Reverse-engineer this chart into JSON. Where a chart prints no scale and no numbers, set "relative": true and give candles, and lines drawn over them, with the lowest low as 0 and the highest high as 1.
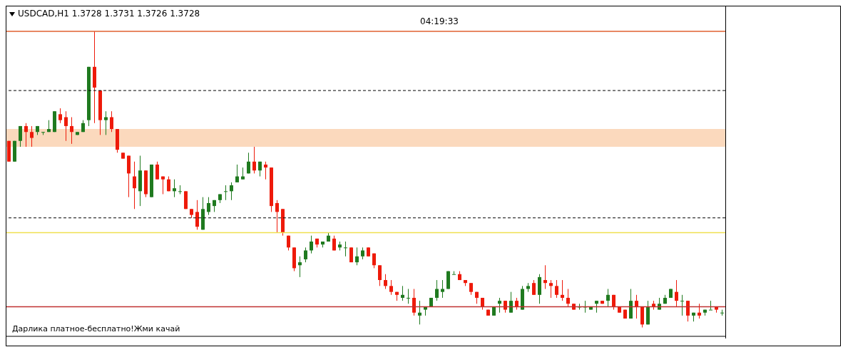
{
  "chart_data": {
    "type": "candlestick",
    "title": "USDCAD,H1  1.3728 1.3731 1.3726 1.3728",
    "relative": true,
    "grid": false,
    "legend": false,
    "categories": [
      null,
      null,
      null,
      null,
      null,
      null,
      null,
      null,
      null,
      null,
      null,
      null,
      null,
      null,
      null,
      null,
      null,
      null,
      null,
      null,
      null,
      null,
      null,
      null,
      null,
      null,
      null,
      null,
      null,
      null,
      null,
      null,
      null,
      null,
      null,
      null,
      null,
      null,
      null,
      null,
      null,
      null,
      null,
      null,
      null,
      null,
      null,
      null,
      null,
      null,
      null,
      null,
      null,
      null,
      null,
      null,
      null,
      null,
      null,
      null,
      null,
      null,
      null,
      null,
      null,
      null,
      null,
      null,
      null,
      null,
      null,
      null,
      null,
      null,
      null,
      null,
      null,
      null,
      null,
      null,
      null,
      null,
      null,
      null,
      null,
      null,
      null,
      null,
      null,
      null,
      null,
      null,
      null,
      null,
      null,
      null,
      null,
      null,
      null,
      null,
      null,
      null,
      null,
      null,
      null,
      null,
      null,
      null,
      null,
      null,
      null,
      null,
      null,
      null,
      null,
      null,
      null,
      null,
      null,
      null,
      null,
      null,
      null,
      null,
      null,
      null
    ],
    "ohlc": [
      [
        0.63,
        0.63,
        0.56,
        0.56
      ],
      [
        0.56,
        0.63,
        0.56,
        0.63
      ],
      [
        0.63,
        0.68,
        0.61,
        0.68
      ],
      [
        0.68,
        0.69,
        0.61,
        0.66
      ],
      [
        0.66,
        0.68,
        0.61,
        0.64
      ],
      [
        0.66,
        0.68,
        0.65,
        0.68
      ],
      [
        0.66,
        0.66,
        0.65,
        0.66
      ],
      [
        0.66,
        0.7,
        0.66,
        0.67
      ],
      [
        0.66,
        0.73,
        0.66,
        0.73
      ],
      [
        0.72,
        0.74,
        0.69,
        0.7
      ],
      [
        0.71,
        0.73,
        0.63,
        0.68
      ],
      [
        0.68,
        0.71,
        0.62,
        0.66
      ],
      [
        0.65,
        0.66,
        0.65,
        0.66
      ],
      [
        0.66,
        0.7,
        0.66,
        0.69
      ],
      [
        0.7,
        0.88,
        0.68,
        0.88
      ],
      [
        0.88,
        1.0,
        0.69,
        0.81
      ],
      [
        0.8,
        0.8,
        0.65,
        0.7
      ],
      [
        0.7,
        0.73,
        0.65,
        0.71
      ],
      [
        0.71,
        0.73,
        0.66,
        0.67
      ],
      [
        0.67,
        0.67,
        0.59,
        0.6
      ],
      [
        0.59,
        0.59,
        0.57,
        0.57
      ],
      [
        0.58,
        0.58,
        0.44,
        0.52
      ],
      [
        0.51,
        0.56,
        0.4,
        0.47
      ],
      [
        0.46,
        0.58,
        0.41,
        0.53
      ],
      [
        0.53,
        0.53,
        0.44,
        0.45
      ],
      [
        0.44,
        0.55,
        0.44,
        0.55
      ],
      [
        0.55,
        0.56,
        0.5,
        0.5
      ],
      [
        0.51,
        0.51,
        0.45,
        0.5
      ],
      [
        0.5,
        0.51,
        0.46,
        0.46
      ],
      [
        0.46,
        0.5,
        0.44,
        0.47
      ],
      [
        0.46,
        0.48,
        0.45,
        0.46
      ],
      [
        0.46,
        0.46,
        0.4,
        0.4
      ],
      [
        0.4,
        0.4,
        0.37,
        0.38
      ],
      [
        0.39,
        0.43,
        0.33,
        0.34
      ],
      [
        0.33,
        0.44,
        0.33,
        0.4
      ],
      [
        0.39,
        0.44,
        0.38,
        0.42
      ],
      [
        0.41,
        0.43,
        0.39,
        0.43
      ],
      [
        0.43,
        0.45,
        0.42,
        0.45
      ],
      [
        0.46,
        0.48,
        0.43,
        0.46
      ],
      [
        0.46,
        0.49,
        0.43,
        0.48
      ],
      [
        0.49,
        0.55,
        0.49,
        0.51
      ],
      [
        0.5,
        0.54,
        0.5,
        0.51
      ],
      [
        0.52,
        0.59,
        0.52,
        0.56
      ],
      [
        0.56,
        0.61,
        0.52,
        0.53
      ],
      [
        0.53,
        0.56,
        0.51,
        0.56
      ],
      [
        0.55,
        0.56,
        0.5,
        0.54
      ],
      [
        0.54,
        0.54,
        0.39,
        0.41
      ],
      [
        0.42,
        0.43,
        0.32,
        0.39
      ],
      [
        0.4,
        0.4,
        0.31,
        0.32
      ],
      [
        0.31,
        0.31,
        0.26,
        0.27
      ],
      [
        0.27,
        0.27,
        0.19,
        0.2
      ],
      [
        0.21,
        0.24,
        0.17,
        0.22
      ],
      [
        0.23,
        0.27,
        0.22,
        0.26
      ],
      [
        0.26,
        0.31,
        0.25,
        0.29
      ],
      [
        0.3,
        0.3,
        0.27,
        0.28
      ],
      [
        0.28,
        0.29,
        0.27,
        0.29
      ],
      [
        0.29,
        0.32,
        0.29,
        0.31
      ],
      [
        0.3,
        0.31,
        0.26,
        0.26
      ],
      [
        0.27,
        0.29,
        0.26,
        0.28
      ],
      [
        0.27,
        0.29,
        0.24,
        0.27
      ],
      [
        0.27,
        0.27,
        0.22,
        0.22
      ],
      [
        0.22,
        0.27,
        0.21,
        0.24
      ],
      [
        0.24,
        0.27,
        0.23,
        0.26
      ],
      [
        0.27,
        0.27,
        0.24,
        0.24
      ],
      [
        0.25,
        0.25,
        0.2,
        0.21
      ],
      [
        0.21,
        0.21,
        0.14,
        0.16
      ],
      [
        0.16,
        0.18,
        0.13,
        0.14
      ],
      [
        0.14,
        0.16,
        0.11,
        0.12
      ],
      [
        0.12,
        0.12,
        0.09,
        0.11
      ],
      [
        0.1,
        0.14,
        0.09,
        0.11
      ],
      [
        0.1,
        0.13,
        0.08,
        0.1
      ],
      [
        0.1,
        0.13,
        0.04,
        0.05
      ],
      [
        0.04,
        0.09,
        0.01,
        0.05
      ],
      [
        0.06,
        0.07,
        0.04,
        0.07
      ],
      [
        0.07,
        0.1,
        0.07,
        0.1
      ],
      [
        0.1,
        0.16,
        0.09,
        0.13
      ],
      [
        0.12,
        0.16,
        0.1,
        0.13
      ],
      [
        0.13,
        0.19,
        0.13,
        0.19
      ],
      [
        0.18,
        0.19,
        0.18,
        0.18
      ],
      [
        0.18,
        0.19,
        0.16,
        0.16
      ],
      [
        0.16,
        0.16,
        0.14,
        0.15
      ],
      [
        0.15,
        0.15,
        0.11,
        0.12
      ],
      [
        0.12,
        0.12,
        0.08,
        0.1
      ],
      [
        0.1,
        0.1,
        0.06,
        0.07
      ],
      [
        0.06,
        0.06,
        0.04,
        0.04
      ],
      [
        0.04,
        0.07,
        0.04,
        0.07
      ],
      [
        0.08,
        0.1,
        0.05,
        0.09
      ],
      [
        0.09,
        0.09,
        0.05,
        0.06
      ],
      [
        0.05,
        0.12,
        0.05,
        0.09
      ],
      [
        0.09,
        0.1,
        0.06,
        0.07
      ],
      [
        0.06,
        0.14,
        0.06,
        0.13
      ],
      [
        0.13,
        0.15,
        0.12,
        0.14
      ],
      [
        0.15,
        0.16,
        0.11,
        0.11
      ],
      [
        0.11,
        0.18,
        0.08,
        0.17
      ],
      [
        0.16,
        0.21,
        0.13,
        0.15
      ],
      [
        0.15,
        0.16,
        0.1,
        0.14
      ],
      [
        0.14,
        0.16,
        0.1,
        0.11
      ],
      [
        0.11,
        0.16,
        0.09,
        0.1
      ],
      [
        0.1,
        0.13,
        0.07,
        0.08
      ],
      [
        0.08,
        0.08,
        0.06,
        0.06
      ],
      [
        0.07,
        0.08,
        0.06,
        0.07
      ],
      [
        0.07,
        0.09,
        0.05,
        0.07
      ],
      [
        0.06,
        0.07,
        0.06,
        0.07
      ],
      [
        0.08,
        0.09,
        0.05,
        0.09
      ],
      [
        0.09,
        0.09,
        0.08,
        0.08
      ],
      [
        0.09,
        0.13,
        0.07,
        0.11
      ],
      [
        0.11,
        0.11,
        0.06,
        0.07
      ],
      [
        0.07,
        0.07,
        0.05,
        0.05
      ],
      [
        0.06,
        0.06,
        0.03,
        0.03
      ],
      [
        0.03,
        0.13,
        0.03,
        0.09
      ],
      [
        0.09,
        0.11,
        0.03,
        0.07
      ],
      [
        0.07,
        0.07,
        0.0,
        0.01
      ],
      [
        0.01,
        0.09,
        0.01,
        0.07
      ],
      [
        0.08,
        0.09,
        0.06,
        0.07
      ],
      [
        0.06,
        0.1,
        0.06,
        0.08
      ],
      [
        0.08,
        0.11,
        0.08,
        0.1
      ],
      [
        0.1,
        0.13,
        0.1,
        0.13
      ],
      [
        0.12,
        0.16,
        0.07,
        0.09
      ],
      [
        0.09,
        0.11,
        0.04,
        0.09
      ],
      [
        0.09,
        0.09,
        0.02,
        0.04
      ],
      [
        0.04,
        0.05,
        0.02,
        0.05
      ],
      [
        0.05,
        0.08,
        0.03,
        0.04
      ],
      [
        0.05,
        0.06,
        0.04,
        0.06
      ],
      [
        0.06,
        0.09,
        0.06,
        0.06
      ],
      [
        0.07,
        0.07,
        0.05,
        0.06
      ],
      [
        0.05,
        0.06,
        0.04,
        0.05
      ]
    ],
    "ref_lines": [
      {
        "axis": "y",
        "value": 1.0,
        "color": "#e06030",
        "line_style": "solid"
      },
      {
        "axis": "y",
        "value": 0.8,
        "color": "#000000",
        "line_style": "dashed"
      },
      {
        "axis": "y",
        "value": 0.37,
        "color": "#000000",
        "line_style": "dashed"
      },
      {
        "axis": "y",
        "value": 0.32,
        "color": "#f0e050",
        "line_style": "solid"
      },
      {
        "axis": "y",
        "value": 0.07,
        "color": "#c03030",
        "line_style": "solid"
      }
    ],
    "bands": [
      {
        "axis": "y",
        "from": 0.61,
        "to": 0.67,
        "color": "#fbd9bd"
      }
    ],
    "annotations": [
      "04:19:33",
      "Дарлика платное-бесплатно!Жми качай"
    ]
  }
}
